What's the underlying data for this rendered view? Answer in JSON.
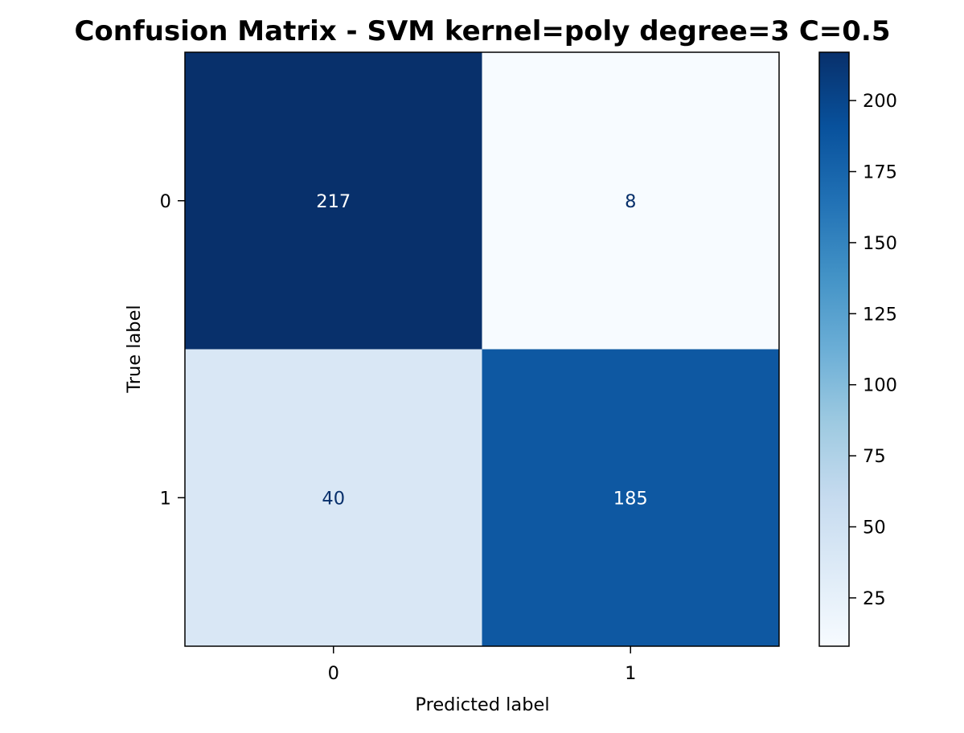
{
  "chart_data": {
    "type": "heatmap",
    "title": "Confusion Matrix - SVM kernel=poly degree=3 C=0.5",
    "xlabel": "Predicted label",
    "ylabel": "True label",
    "x_categories": [
      "0",
      "1"
    ],
    "y_categories": [
      "0",
      "1"
    ],
    "matrix": [
      [
        217,
        8
      ],
      [
        40,
        185
      ]
    ],
    "colormap": "Blues",
    "colorbar": {
      "range": [
        8,
        217
      ],
      "ticks": [
        25,
        50,
        75,
        100,
        125,
        150,
        175,
        200
      ]
    },
    "grid": false,
    "colors": {
      "text_on_dark": "#ffffff",
      "text_on_light": "#08306b"
    }
  }
}
